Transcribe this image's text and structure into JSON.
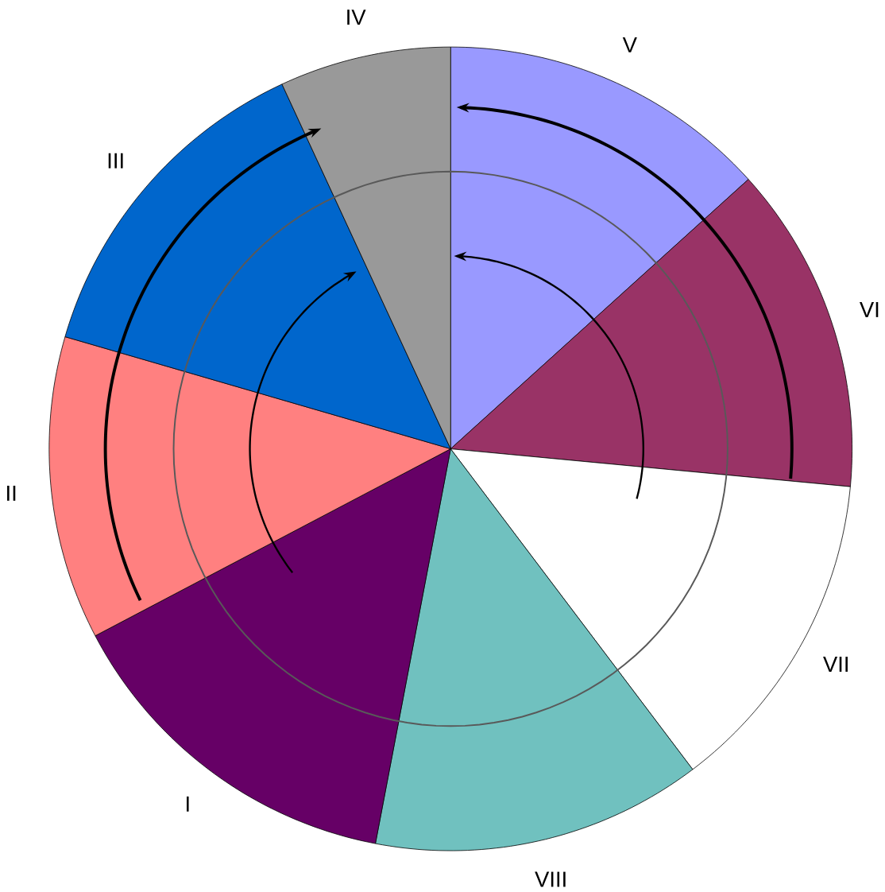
{
  "chart_data": {
    "type": "pie",
    "categories": [
      "V",
      "VI",
      "VII",
      "VIII",
      "I",
      "II",
      "III",
      "IV"
    ],
    "values": [
      13.3,
      13.2,
      13.2,
      13.3,
      14.3,
      12.2,
      13.6,
      6.9
    ],
    "colors": [
      "#9999ff",
      "#993366",
      "#ffffff",
      "#70c1bf",
      "#660066",
      "#ff8080",
      "#0066cc",
      "#999999"
    ]
  }
}
